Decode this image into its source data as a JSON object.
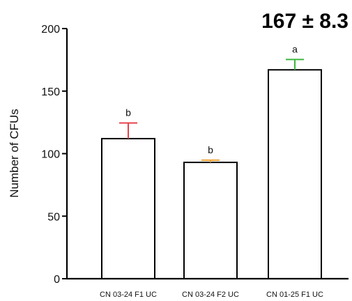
{
  "chart_data": {
    "type": "bar",
    "headline": "167 ± 8.3",
    "ylabel": "Number of CFUs",
    "xlabel": "",
    "ylim": [
      0,
      200
    ],
    "yticks": [
      "0",
      "50",
      "100",
      "150",
      "200"
    ],
    "categories": [
      "CN 03-24 F1 UC",
      "CN 03-24 F2 UC",
      "CN 01-25 F1 UC"
    ],
    "values": [
      112,
      93,
      167
    ],
    "errors": [
      12.5,
      1.8,
      8.3
    ],
    "significance": [
      "b",
      "b",
      "a"
    ],
    "error_colors": [
      "#e8404a",
      "#f0a030",
      "#3cb83c"
    ],
    "bar_fill": "#ffffff",
    "bar_stroke": "#000000",
    "grid": false
  }
}
